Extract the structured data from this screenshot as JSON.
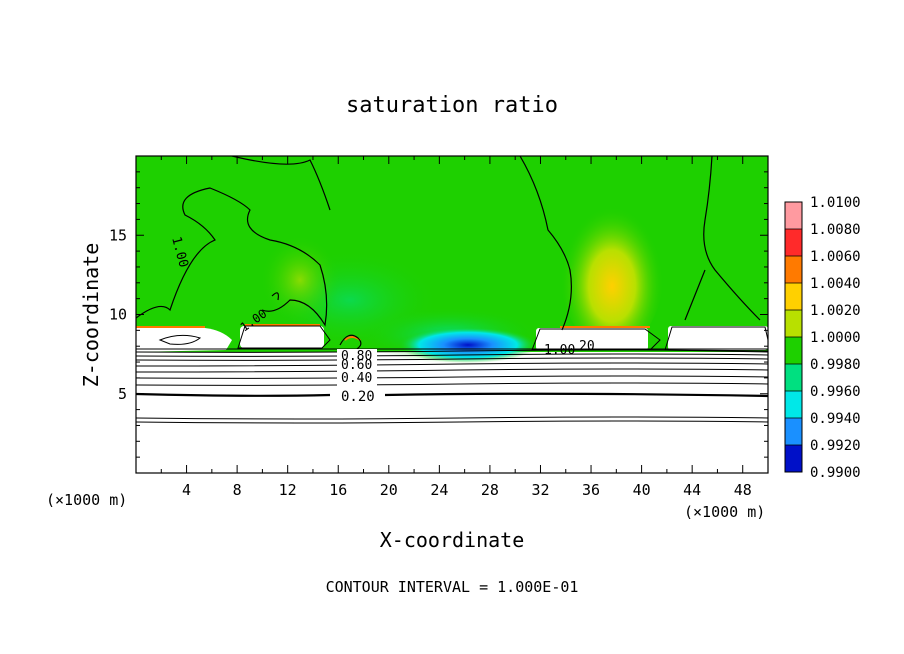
{
  "chart_data": {
    "type": "heatmap",
    "title": "saturation ratio",
    "xlabel": "X-coordinate",
    "ylabel": "Z-coordinate",
    "x_unit_left": "(×1000 m)",
    "x_unit_right": "(×1000 m)",
    "footer": "CONTOUR INTERVAL = 1.000E-01",
    "xlim": [
      0,
      50
    ],
    "ylim": [
      0,
      20
    ],
    "xticks": [
      4,
      8,
      12,
      16,
      20,
      24,
      28,
      32,
      36,
      40,
      44,
      48
    ],
    "yticks": [
      5,
      10,
      15
    ],
    "colorbar": {
      "levels": [
        "1.0100",
        "1.0080",
        "1.0060",
        "1.0040",
        "1.0020",
        "1.0000",
        "0.9980",
        "0.9960",
        "0.9940",
        "0.9920",
        "0.9900"
      ],
      "colors": [
        "#ff9aa0",
        "#ff2a2a",
        "#ff7a00",
        "#ffd000",
        "#b8e000",
        "#1ed000",
        "#00e080",
        "#00e8e8",
        "#1a90ff",
        "#0010c8",
        "#5000a0"
      ]
    },
    "contour_labels": [
      "1.00",
      "1.00",
      "0.80",
      "0.60",
      "0.40",
      "0.20",
      "1.00",
      "20",
      "1.00"
    ],
    "field_summary": {
      "background_value": "1.0000",
      "subsaturated_below_z": 8,
      "min_region": {
        "x": 27,
        "z": 8,
        "value": "0.9920"
      },
      "max_region": {
        "x": 38,
        "z": 10.5,
        "value": "1.0040"
      }
    }
  }
}
